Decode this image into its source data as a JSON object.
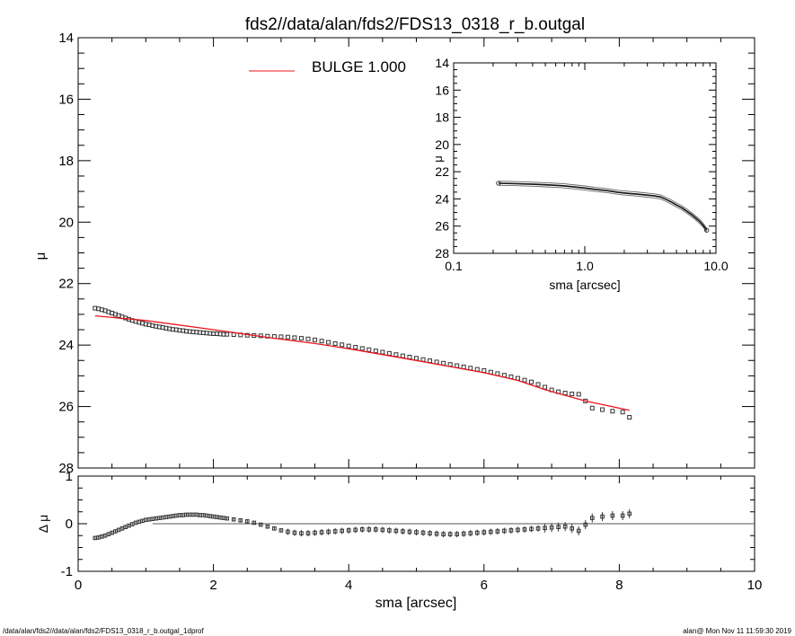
{
  "title": "fds2//data/alan/fds2/FDS13_0318_r_b.outgal",
  "footer": {
    "left": "/data/alan/fds2//data/alan/fds2/FDS13_0318_r_b.outgal_1dprof",
    "right": "alan@  Mon Nov 11 11:59:30 2019"
  },
  "colors": {
    "model": "#e8141b",
    "data": "#333333",
    "axis": "#000000"
  },
  "chart_data": [
    {
      "id": "main",
      "type": "scatter",
      "xlim": [
        0,
        10
      ],
      "ylim": [
        28,
        14
      ],
      "ylabel": "μ",
      "xticks": [
        0,
        2,
        4,
        6,
        8,
        10
      ],
      "yticks": [
        14,
        16,
        18,
        20,
        22,
        24,
        26,
        28
      ],
      "legend": {
        "label": "BULGE  1.000",
        "placement": "top-left"
      },
      "series": [
        {
          "name": "data",
          "x": [
            0.25,
            0.3,
            0.35,
            0.4,
            0.45,
            0.5,
            0.55,
            0.6,
            0.65,
            0.7,
            0.75,
            0.8,
            0.85,
            0.9,
            0.95,
            1.0,
            1.05,
            1.1,
            1.15,
            1.2,
            1.25,
            1.3,
            1.35,
            1.4,
            1.45,
            1.5,
            1.55,
            1.6,
            1.65,
            1.7,
            1.75,
            1.8,
            1.85,
            1.9,
            1.95,
            2.0,
            2.05,
            2.1,
            2.15,
            2.2,
            2.3,
            2.4,
            2.5,
            2.6,
            2.7,
            2.8,
            2.9,
            3.0,
            3.1,
            3.2,
            3.3,
            3.4,
            3.5,
            3.6,
            3.7,
            3.8,
            3.9,
            4.0,
            4.1,
            4.2,
            4.3,
            4.4,
            4.5,
            4.6,
            4.7,
            4.8,
            4.9,
            5.0,
            5.1,
            5.2,
            5.3,
            5.4,
            5.5,
            5.6,
            5.7,
            5.8,
            5.9,
            6.0,
            6.1,
            6.2,
            6.3,
            6.4,
            6.5,
            6.6,
            6.7,
            6.8,
            6.9,
            7.0,
            7.1,
            7.2,
            7.3,
            7.4,
            7.5,
            7.6,
            7.75,
            7.9,
            8.05,
            8.15
          ],
          "y": [
            22.8,
            22.82,
            22.85,
            22.88,
            22.92,
            22.96,
            23.0,
            23.04,
            23.08,
            23.12,
            23.16,
            23.2,
            23.23,
            23.26,
            23.29,
            23.32,
            23.34,
            23.37,
            23.39,
            23.41,
            23.43,
            23.45,
            23.47,
            23.49,
            23.5,
            23.52,
            23.53,
            23.55,
            23.56,
            23.57,
            23.58,
            23.59,
            23.6,
            23.61,
            23.62,
            23.63,
            23.63,
            23.64,
            23.65,
            23.65,
            23.66,
            23.67,
            23.68,
            23.69,
            23.7,
            23.71,
            23.72,
            23.73,
            23.74,
            23.76,
            23.78,
            23.8,
            23.83,
            23.87,
            23.91,
            23.95,
            23.99,
            24.03,
            24.07,
            24.11,
            24.15,
            24.19,
            24.23,
            24.27,
            24.31,
            24.35,
            24.39,
            24.43,
            24.47,
            24.51,
            24.55,
            24.59,
            24.63,
            24.67,
            24.71,
            24.75,
            24.79,
            24.83,
            24.88,
            24.93,
            24.98,
            25.03,
            25.08,
            25.14,
            25.2,
            25.28,
            25.37,
            25.46,
            25.52,
            25.56,
            25.59,
            25.6,
            25.82,
            26.05,
            26.1,
            26.15,
            26.18,
            26.35
          ]
        },
        {
          "name": "model",
          "x": [
            0.25,
            1.0,
            2.0,
            2.8,
            3.5,
            4.0,
            5.0,
            6.0,
            6.5,
            6.9,
            7.3,
            7.5,
            8.15
          ],
          "y": [
            23.05,
            23.2,
            23.5,
            23.75,
            23.95,
            24.12,
            24.5,
            24.9,
            25.15,
            25.45,
            25.7,
            25.82,
            26.12
          ]
        }
      ]
    },
    {
      "id": "residual",
      "type": "scatter",
      "xlim": [
        0,
        10
      ],
      "ylim": [
        -1,
        1
      ],
      "xlabel": "sma [arcsec]",
      "ylabel": "Δ μ",
      "xticks": [
        0,
        2,
        4,
        6,
        8,
        10
      ],
      "yticks": [
        -1,
        0,
        1
      ],
      "zero_line": true,
      "series": [
        {
          "name": "residual",
          "x": [
            0.25,
            0.3,
            0.35,
            0.4,
            0.45,
            0.5,
            0.55,
            0.6,
            0.65,
            0.7,
            0.75,
            0.8,
            0.85,
            0.9,
            0.95,
            1.0,
            1.05,
            1.1,
            1.15,
            1.2,
            1.25,
            1.3,
            1.35,
            1.4,
            1.45,
            1.5,
            1.55,
            1.6,
            1.65,
            1.7,
            1.75,
            1.8,
            1.85,
            1.9,
            1.95,
            2.0,
            2.05,
            2.1,
            2.15,
            2.2,
            2.3,
            2.4,
            2.5,
            2.6,
            2.7,
            2.8,
            2.9,
            3.0,
            3.1,
            3.2,
            3.3,
            3.4,
            3.5,
            3.6,
            3.7,
            3.8,
            3.9,
            4.0,
            4.1,
            4.2,
            4.3,
            4.4,
            4.5,
            4.6,
            4.7,
            4.8,
            4.9,
            5.0,
            5.1,
            5.2,
            5.3,
            5.4,
            5.5,
            5.6,
            5.7,
            5.8,
            5.9,
            6.0,
            6.1,
            6.2,
            6.3,
            6.4,
            6.5,
            6.6,
            6.7,
            6.8,
            6.9,
            7.0,
            7.1,
            7.2,
            7.3,
            7.4,
            7.5,
            7.6,
            7.75,
            7.9,
            8.05,
            8.15
          ],
          "y": [
            -0.3,
            -0.29,
            -0.27,
            -0.25,
            -0.22,
            -0.19,
            -0.16,
            -0.13,
            -0.1,
            -0.07,
            -0.04,
            -0.01,
            0.02,
            0.04,
            0.06,
            0.08,
            0.09,
            0.1,
            0.11,
            0.12,
            0.13,
            0.14,
            0.15,
            0.16,
            0.17,
            0.18,
            0.18,
            0.19,
            0.19,
            0.19,
            0.19,
            0.18,
            0.18,
            0.17,
            0.16,
            0.15,
            0.14,
            0.13,
            0.12,
            0.11,
            0.09,
            0.07,
            0.05,
            0.02,
            -0.02,
            -0.06,
            -0.1,
            -0.14,
            -0.17,
            -0.19,
            -0.2,
            -0.2,
            -0.19,
            -0.18,
            -0.17,
            -0.16,
            -0.15,
            -0.14,
            -0.13,
            -0.12,
            -0.12,
            -0.12,
            -0.13,
            -0.14,
            -0.15,
            -0.16,
            -0.17,
            -0.18,
            -0.19,
            -0.2,
            -0.21,
            -0.22,
            -0.22,
            -0.22,
            -0.21,
            -0.2,
            -0.19,
            -0.18,
            -0.17,
            -0.16,
            -0.15,
            -0.14,
            -0.13,
            -0.12,
            -0.11,
            -0.1,
            -0.09,
            -0.08,
            -0.07,
            -0.06,
            -0.1,
            -0.15,
            -0.02,
            0.12,
            0.15,
            0.17,
            0.17,
            0.21
          ]
        }
      ]
    },
    {
      "id": "inset",
      "type": "line",
      "xscale": "log",
      "xlim": [
        0.1,
        10.0
      ],
      "ylim": [
        28,
        14
      ],
      "xlabel": "sma [arcsec]",
      "ylabel": "μ",
      "xticks": [
        0.1,
        1.0,
        10.0
      ],
      "xticklabels": [
        "0.1",
        "1.0",
        "10.0"
      ],
      "yticks": [
        14,
        16,
        18,
        20,
        22,
        24,
        26,
        28
      ],
      "series": [
        {
          "name": "profile",
          "x": [
            0.22,
            0.3,
            0.4,
            0.5,
            0.6,
            0.7,
            0.8,
            1.0,
            1.2,
            1.5,
            1.8,
            2.2,
            2.6,
            3.0,
            3.4,
            3.8,
            4.2,
            4.6,
            5.0,
            5.5,
            6.0,
            6.5,
            7.0,
            7.5,
            8.0,
            8.5
          ],
          "y": [
            22.85,
            22.88,
            22.92,
            22.96,
            23.0,
            23.04,
            23.1,
            23.2,
            23.3,
            23.4,
            23.52,
            23.6,
            23.66,
            23.72,
            23.78,
            23.86,
            24.05,
            24.25,
            24.45,
            24.65,
            24.9,
            25.15,
            25.4,
            25.65,
            25.95,
            26.3
          ]
        }
      ]
    }
  ]
}
